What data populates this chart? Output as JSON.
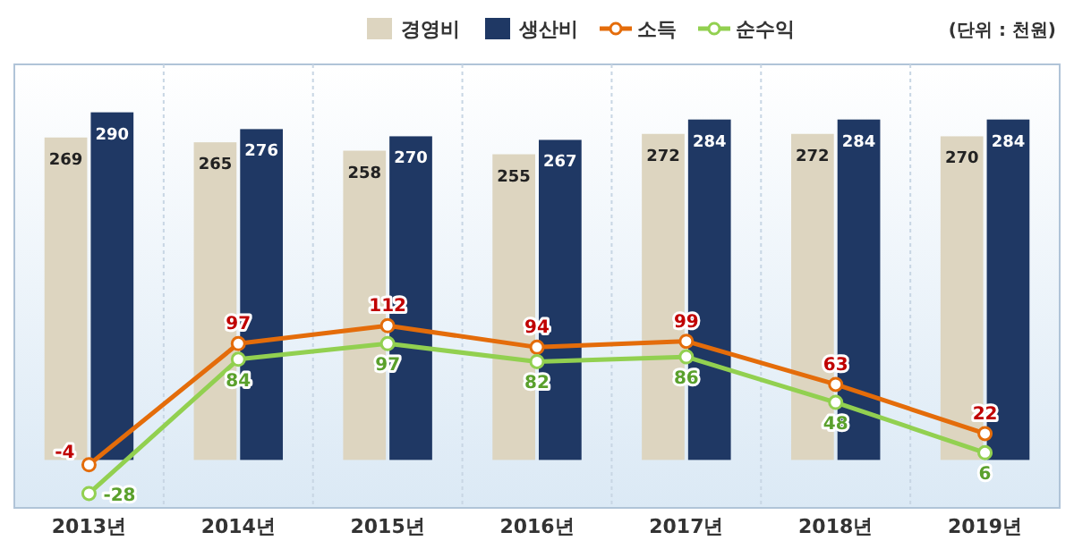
{
  "chart_data": {
    "type": "bar",
    "categories": [
      "2013년",
      "2014년",
      "2015년",
      "2016년",
      "2017년",
      "2018년",
      "2019년"
    ],
    "series": [
      {
        "name": "경영비",
        "color": "#ddd5c0",
        "values": [
          269,
          265,
          258,
          255,
          272,
          272,
          270
        ]
      },
      {
        "name": "생산비",
        "color": "#1f3864",
        "values": [
          290,
          276,
          270,
          267,
          284,
          284,
          284
        ]
      },
      {
        "name": "소득",
        "type": "line",
        "color": "#e46c0a",
        "values": [
          -4,
          97,
          112,
          94,
          99,
          63,
          22
        ]
      },
      {
        "name": "순수익",
        "type": "line",
        "color": "#92d050",
        "values": [
          -28,
          84,
          97,
          82,
          86,
          48,
          6
        ]
      }
    ],
    "ylim": [
      -40,
      330
    ],
    "tick_labels": "x",
    "data_labels": true,
    "legend": "top",
    "marker": "circle",
    "annotations": [
      "(단위 : 천원)"
    ]
  }
}
